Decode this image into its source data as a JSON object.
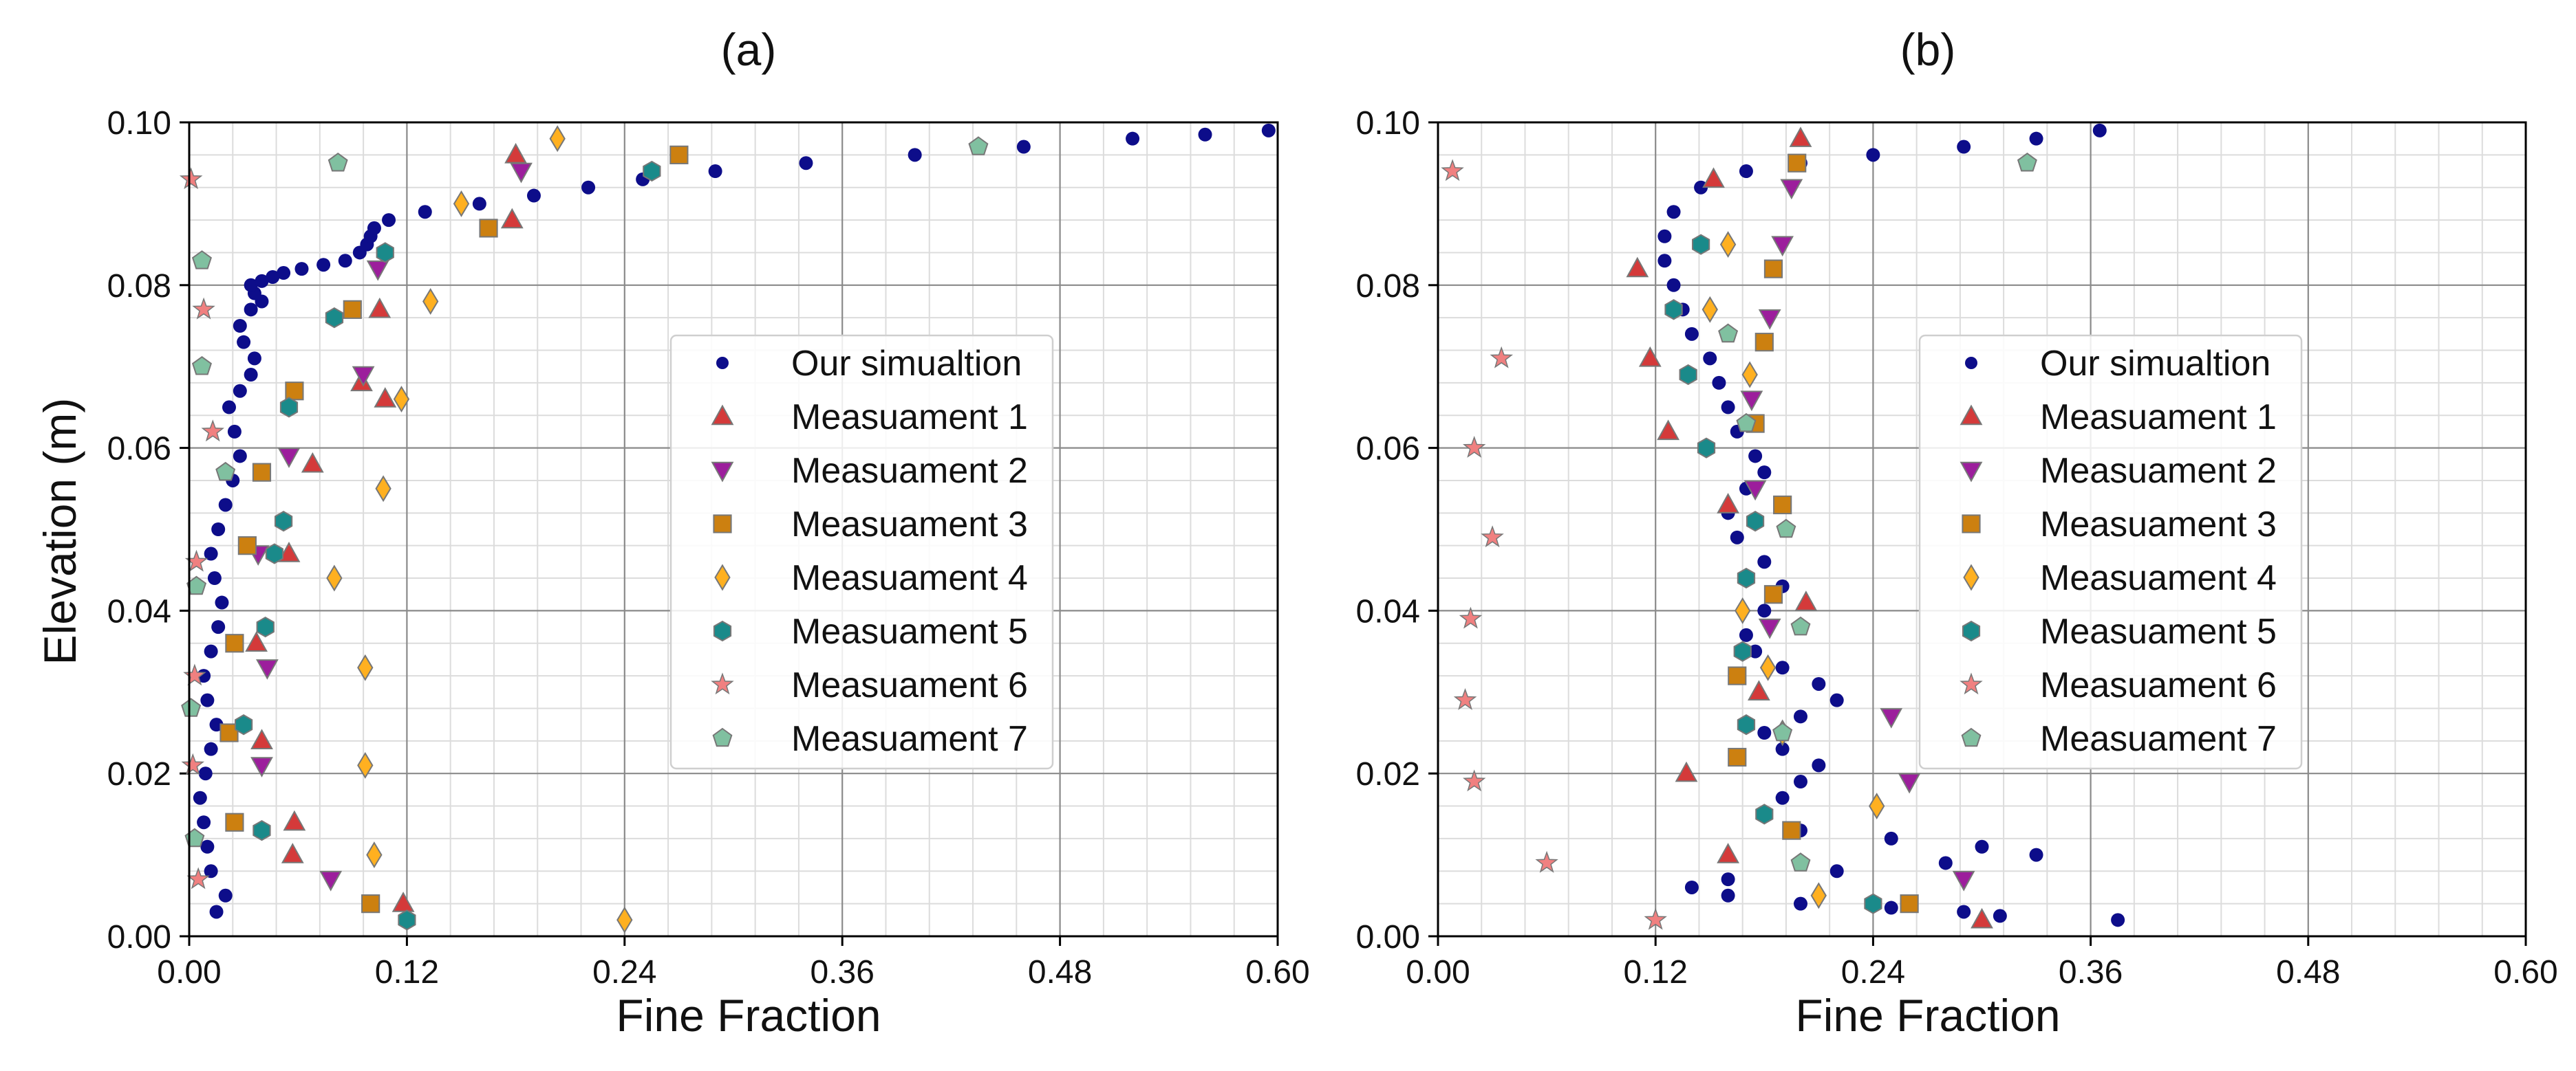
{
  "figure": {
    "colors": {
      "simulation": "#0d0d8a",
      "m1": "#d43a3a",
      "m2": "#9c1e9c",
      "m3": "#cc8010",
      "m4": "#ffb020",
      "m5": "#1a8a8a",
      "m6": "#f08080",
      "m7": "#80c0a0",
      "marker_edge": "#777777"
    }
  },
  "chart_data": [
    {
      "type": "scatter",
      "title": "(a)",
      "xlabel": "Fine Fraction",
      "ylabel": "Elevation (m)",
      "xlim": [
        0,
        0.6
      ],
      "ylim": [
        0,
        0.1
      ],
      "xticks": [
        0,
        0.12,
        0.24,
        0.36,
        0.48,
        0.6
      ],
      "yticks": [
        0,
        0.02,
        0.04,
        0.06,
        0.08,
        0.1
      ],
      "xtick_labels": [
        "0.00",
        "0.12",
        "0.24",
        "0.36",
        "0.48",
        "0.60"
      ],
      "ytick_labels": [
        "0.00",
        "0.02",
        "0.04",
        "0.06",
        "0.08",
        "0.10"
      ],
      "grid": true,
      "legend_position": "center-right",
      "simulation": {
        "name": "Our simualtion",
        "x": [
          0.015,
          0.02,
          0.012,
          0.01,
          0.008,
          0.006,
          0.009,
          0.012,
          0.015,
          0.01,
          0.008,
          0.012,
          0.016,
          0.018,
          0.014,
          0.012,
          0.016,
          0.02,
          0.024,
          0.028,
          0.025,
          0.022,
          0.028,
          0.034,
          0.036,
          0.03,
          0.028,
          0.034,
          0.04,
          0.036,
          0.034,
          0.04,
          0.046,
          0.052,
          0.062,
          0.074,
          0.086,
          0.094,
          0.098,
          0.1,
          0.102,
          0.11,
          0.13,
          0.16,
          0.19,
          0.22,
          0.25,
          0.29,
          0.34,
          0.4,
          0.46,
          0.52,
          0.56,
          0.595
        ],
        "y": [
          0.003,
          0.005,
          0.008,
          0.011,
          0.014,
          0.017,
          0.02,
          0.023,
          0.026,
          0.029,
          0.032,
          0.035,
          0.038,
          0.041,
          0.044,
          0.047,
          0.05,
          0.053,
          0.056,
          0.059,
          0.062,
          0.065,
          0.067,
          0.069,
          0.071,
          0.073,
          0.075,
          0.077,
          0.078,
          0.079,
          0.08,
          0.0805,
          0.081,
          0.0815,
          0.082,
          0.0825,
          0.083,
          0.084,
          0.085,
          0.086,
          0.087,
          0.088,
          0.089,
          0.09,
          0.091,
          0.092,
          0.093,
          0.094,
          0.095,
          0.096,
          0.097,
          0.098,
          0.0985,
          0.099
        ]
      },
      "measurements": [
        {
          "name": "Measuament 1",
          "marker": "triangle-up",
          "color_key": "m1",
          "x": [
            0.118,
            0.057,
            0.058,
            0.04,
            0.037,
            0.055,
            0.068,
            0.108,
            0.095,
            0.105,
            0.178,
            0.18
          ],
          "y": [
            0.004,
            0.01,
            0.014,
            0.024,
            0.036,
            0.047,
            0.058,
            0.066,
            0.068,
            0.077,
            0.088,
            0.096
          ]
        },
        {
          "name": "Measuament 2",
          "marker": "triangle-down",
          "color_key": "m2",
          "x": [
            0.078,
            0.04,
            0.043,
            0.038,
            0.055,
            0.096,
            0.104,
            0.183
          ],
          "y": [
            0.007,
            0.021,
            0.033,
            0.047,
            0.059,
            0.069,
            0.082,
            0.094
          ]
        },
        {
          "name": "Measuament 3",
          "marker": "square",
          "color_key": "m3",
          "x": [
            0.1,
            0.025,
            0.022,
            0.025,
            0.032,
            0.04,
            0.058,
            0.09,
            0.165,
            0.27
          ],
          "y": [
            0.004,
            0.014,
            0.025,
            0.036,
            0.048,
            0.057,
            0.067,
            0.077,
            0.087,
            0.096
          ]
        },
        {
          "name": "Measuament 4",
          "marker": "diamond",
          "color_key": "m4",
          "x": [
            0.24,
            0.102,
            0.097,
            0.097,
            0.08,
            0.107,
            0.117,
            0.133,
            0.15,
            0.203
          ],
          "y": [
            0.002,
            0.01,
            0.021,
            0.033,
            0.044,
            0.055,
            0.066,
            0.078,
            0.09,
            0.098
          ]
        },
        {
          "name": "Measuament 5",
          "marker": "hexagon",
          "color_key": "m5",
          "x": [
            0.12,
            0.04,
            0.03,
            0.042,
            0.047,
            0.052,
            0.055,
            0.08,
            0.108,
            0.255
          ],
          "y": [
            0.002,
            0.013,
            0.026,
            0.038,
            0.047,
            0.051,
            0.065,
            0.076,
            0.084,
            0.094
          ]
        },
        {
          "name": "Measuament 6",
          "marker": "star",
          "color_key": "m6",
          "x": [
            0.005,
            0.002,
            0.003,
            0.004,
            0.013,
            0.008,
            0.001
          ],
          "y": [
            0.007,
            0.021,
            0.032,
            0.046,
            0.062,
            0.077,
            0.093
          ]
        },
        {
          "name": "Measuament 7",
          "marker": "pentagon",
          "color_key": "m7",
          "x": [
            0.003,
            0.001,
            0.004,
            0.02,
            0.007,
            0.007,
            0.082,
            0.435
          ],
          "y": [
            0.012,
            0.028,
            0.043,
            0.057,
            0.07,
            0.083,
            0.095,
            0.097
          ]
        }
      ]
    },
    {
      "type": "scatter",
      "title": "(b)",
      "xlabel": "Fine Fraction",
      "ylabel": "",
      "xlim": [
        0,
        0.6
      ],
      "ylim": [
        0,
        0.1
      ],
      "xticks": [
        0,
        0.12,
        0.24,
        0.36,
        0.48,
        0.6
      ],
      "yticks": [
        0,
        0.02,
        0.04,
        0.06,
        0.08,
        0.1
      ],
      "xtick_labels": [
        "0.00",
        "0.12",
        "0.24",
        "0.36",
        "0.48",
        "0.60"
      ],
      "ytick_labels": [
        "0.00",
        "0.02",
        "0.04",
        "0.06",
        "0.08",
        "0.10"
      ],
      "grid": true,
      "legend_position": "center-right",
      "simulation": {
        "name": "Our simualtion",
        "x": [
          0.375,
          0.31,
          0.29,
          0.25,
          0.2,
          0.16,
          0.14,
          0.16,
          0.22,
          0.28,
          0.33,
          0.3,
          0.25,
          0.2,
          0.18,
          0.19,
          0.2,
          0.21,
          0.19,
          0.18,
          0.2,
          0.22,
          0.21,
          0.19,
          0.175,
          0.17,
          0.18,
          0.19,
          0.18,
          0.165,
          0.16,
          0.17,
          0.18,
          0.175,
          0.165,
          0.16,
          0.155,
          0.15,
          0.14,
          0.135,
          0.13,
          0.125,
          0.125,
          0.13,
          0.145,
          0.17,
          0.2,
          0.24,
          0.29,
          0.33,
          0.365
        ],
        "y": [
          0.002,
          0.0025,
          0.003,
          0.0035,
          0.004,
          0.005,
          0.006,
          0.007,
          0.008,
          0.009,
          0.01,
          0.011,
          0.012,
          0.013,
          0.015,
          0.017,
          0.019,
          0.021,
          0.023,
          0.025,
          0.027,
          0.029,
          0.031,
          0.033,
          0.035,
          0.037,
          0.04,
          0.043,
          0.046,
          0.049,
          0.052,
          0.055,
          0.057,
          0.059,
          0.062,
          0.065,
          0.068,
          0.071,
          0.074,
          0.077,
          0.08,
          0.083,
          0.086,
          0.089,
          0.092,
          0.094,
          0.095,
          0.096,
          0.097,
          0.098,
          0.099
        ]
      },
      "measurements": [
        {
          "name": "Measuament 1",
          "marker": "triangle-up",
          "color_key": "m1",
          "x": [
            0.3,
            0.16,
            0.137,
            0.177,
            0.203,
            0.16,
            0.127,
            0.117,
            0.11,
            0.152,
            0.2
          ],
          "y": [
            0.002,
            0.01,
            0.02,
            0.03,
            0.041,
            0.053,
            0.062,
            0.071,
            0.082,
            0.093,
            0.098
          ]
        },
        {
          "name": "Measuament 2",
          "marker": "triangle-down",
          "color_key": "m2",
          "x": [
            0.29,
            0.26,
            0.25,
            0.183,
            0.175,
            0.173,
            0.183,
            0.19,
            0.195
          ],
          "y": [
            0.007,
            0.019,
            0.027,
            0.038,
            0.055,
            0.066,
            0.076,
            0.085,
            0.092
          ]
        },
        {
          "name": "Measuament 3",
          "marker": "square",
          "color_key": "m3",
          "x": [
            0.26,
            0.195,
            0.165,
            0.165,
            0.185,
            0.19,
            0.175,
            0.18,
            0.185,
            0.198
          ],
          "y": [
            0.004,
            0.013,
            0.022,
            0.032,
            0.042,
            0.053,
            0.063,
            0.073,
            0.082,
            0.095
          ]
        },
        {
          "name": "Measuament 4",
          "marker": "diamond",
          "color_key": "m4",
          "x": [
            0.21,
            0.242,
            0.19,
            0.182,
            0.168,
            0.172,
            0.15,
            0.16
          ],
          "y": [
            0.005,
            0.016,
            0.025,
            0.033,
            0.04,
            0.069,
            0.077,
            0.085
          ]
        },
        {
          "name": "Measuament 5",
          "marker": "hexagon",
          "color_key": "m5",
          "x": [
            0.24,
            0.18,
            0.17,
            0.168,
            0.17,
            0.175,
            0.148,
            0.138,
            0.13,
            0.145
          ],
          "y": [
            0.004,
            0.015,
            0.026,
            0.035,
            0.044,
            0.051,
            0.06,
            0.069,
            0.077,
            0.085
          ]
        },
        {
          "name": "Measuament 6",
          "marker": "star",
          "color_key": "m6",
          "x": [
            0.12,
            0.06,
            0.02,
            0.015,
            0.018,
            0.03,
            0.02,
            0.035,
            0.008
          ],
          "y": [
            0.002,
            0.009,
            0.019,
            0.029,
            0.039,
            0.049,
            0.06,
            0.071,
            0.094
          ]
        },
        {
          "name": "Measuament 7",
          "marker": "pentagon",
          "color_key": "m7",
          "x": [
            0.2,
            0.19,
            0.2,
            0.192,
            0.17,
            0.16,
            0.325
          ],
          "y": [
            0.009,
            0.025,
            0.038,
            0.05,
            0.063,
            0.074,
            0.095
          ]
        }
      ]
    }
  ]
}
